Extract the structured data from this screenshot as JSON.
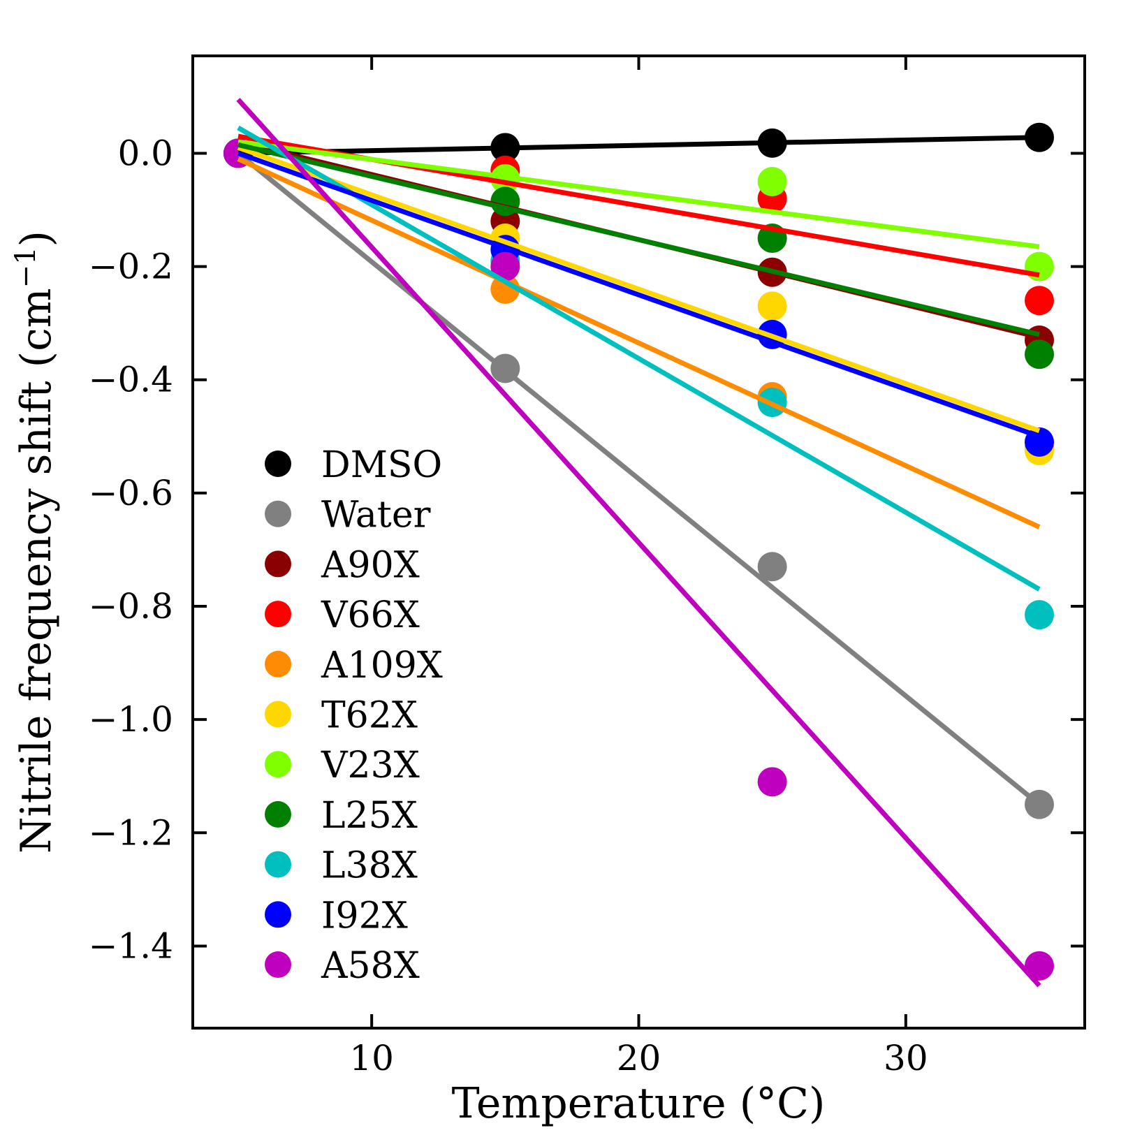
{
  "chart_data": {
    "type": "scatter",
    "xlabel": "Temperature (°C)",
    "ylabel_main": "Nitrile frequency shift (cm",
    "ylabel_sup": "−1",
    "ylabel_close": ")",
    "xlim": [
      3.3,
      36.7
    ],
    "ylim": [
      -1.545,
      0.172
    ],
    "x_ticks": [
      10,
      20,
      30
    ],
    "x_tick_labels": [
      "10",
      "20",
      "30"
    ],
    "y_ticks": [
      0.0,
      -0.2,
      -0.4,
      -0.6,
      -0.8,
      -1.0,
      -1.2,
      -1.4
    ],
    "y_tick_labels": [
      "0.0",
      "−0.2",
      "−0.4",
      "−0.6",
      "−0.8",
      "−1.0",
      "−1.2",
      "−1.4"
    ],
    "legend_position": "lower-left",
    "grid": false,
    "x": [
      5,
      15,
      25,
      35
    ],
    "series": [
      {
        "name": "DMSO",
        "color": "#000000",
        "values": [
          0.0,
          0.01,
          0.018,
          0.028
        ],
        "fit": [
          [
            5,
            0.0
          ],
          [
            35,
            0.028
          ]
        ]
      },
      {
        "name": "Water",
        "color": "#808080",
        "values": [
          0.0,
          -0.38,
          -0.73,
          -1.15
        ],
        "fit": [
          [
            5,
            0.0
          ],
          [
            35,
            -1.15
          ]
        ]
      },
      {
        "name": "A90X",
        "color": "#8b0000",
        "values": [
          0.0,
          -0.12,
          -0.21,
          -0.33
        ],
        "fit": [
          [
            5,
            0.02
          ],
          [
            35,
            -0.325
          ]
        ]
      },
      {
        "name": "V66X",
        "color": "#ff0000",
        "values": [
          0.0,
          -0.03,
          -0.08,
          -0.26
        ],
        "fit": [
          [
            5,
            0.03
          ],
          [
            35,
            -0.215
          ]
        ]
      },
      {
        "name": "A109X",
        "color": "#ff8c00",
        "values": [
          0.0,
          -0.24,
          -0.43,
          -0.52
        ],
        "fit": [
          [
            5,
            -0.01
          ],
          [
            35,
            -0.66
          ]
        ]
      },
      {
        "name": "T62X",
        "color": "#ffd700",
        "values": [
          0.0,
          -0.15,
          -0.27,
          -0.525
        ],
        "fit": [
          [
            5,
            0.01
          ],
          [
            35,
            -0.49
          ]
        ]
      },
      {
        "name": "V23X",
        "color": "#7fff00",
        "values": [
          0.0,
          -0.045,
          -0.05,
          -0.2
        ],
        "fit": [
          [
            5,
            0.02
          ],
          [
            35,
            -0.165
          ]
        ]
      },
      {
        "name": "L25X",
        "color": "#008000",
        "values": [
          0.0,
          -0.085,
          -0.15,
          -0.355
        ],
        "fit": [
          [
            5,
            0.015
          ],
          [
            35,
            -0.32
          ]
        ]
      },
      {
        "name": "L38X",
        "color": "#00bfbf",
        "values": [
          0.0,
          -0.19,
          -0.44,
          -0.815
        ],
        "fit": [
          [
            5,
            0.045
          ],
          [
            35,
            -0.77
          ]
        ]
      },
      {
        "name": "I92X",
        "color": "#0000ff",
        "values": [
          0.0,
          -0.17,
          -0.32,
          -0.51
        ],
        "fit": [
          [
            5,
            0.0
          ],
          [
            35,
            -0.5
          ]
        ]
      },
      {
        "name": "A58X",
        "color": "#bf00bf",
        "values": [
          0.0,
          -0.2,
          -1.11,
          -1.435
        ],
        "fit": [
          [
            5,
            0.095
          ],
          [
            35,
            -1.47
          ]
        ]
      }
    ]
  }
}
